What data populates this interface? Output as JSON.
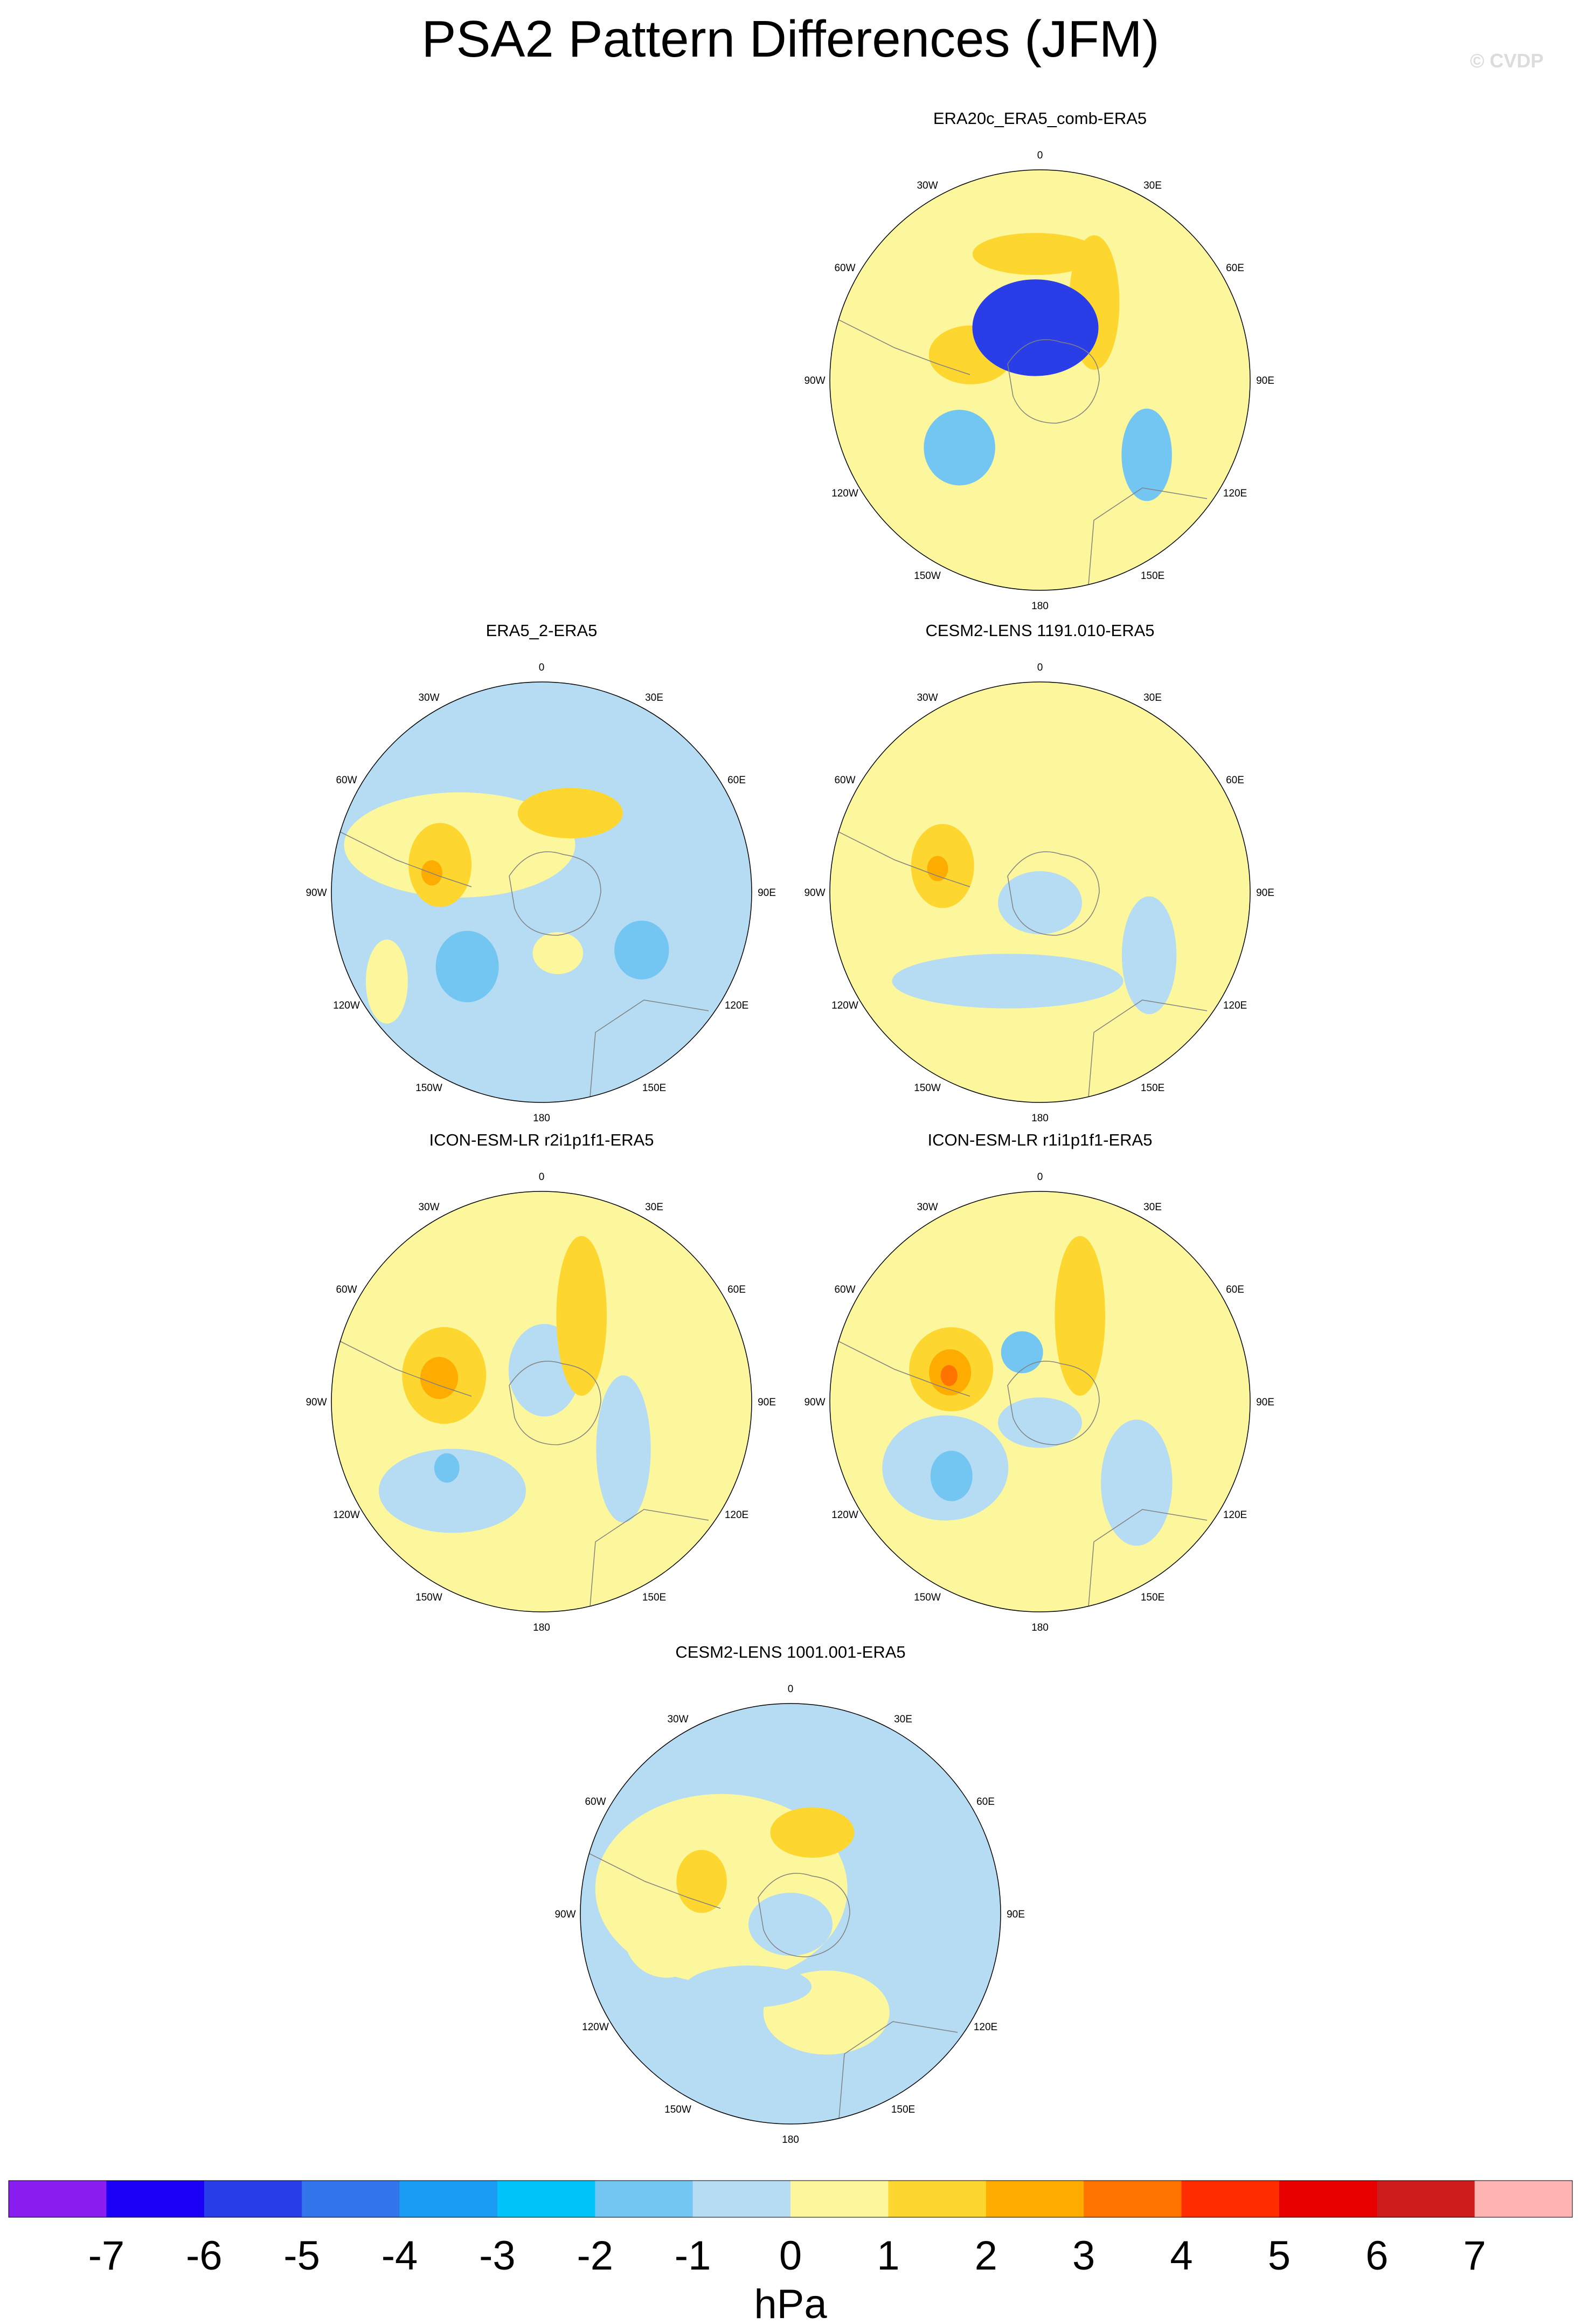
{
  "title": "PSA2 Pattern Differences (JFM)",
  "copyright": "© CVDP",
  "chart_data": {
    "type": "heatmap",
    "projection": "south-polar-stereographic",
    "levels": [
      -7,
      -6,
      -5,
      -4,
      -3,
      -2,
      -1,
      0,
      1,
      2,
      3,
      4,
      5,
      6,
      7
    ],
    "colors": [
      "#8a1ef0",
      "#1c00f5",
      "#2a3ee8",
      "#3274ea",
      "#1a9cf5",
      "#00c3fa",
      "#74c6f2",
      "#b5dcf2",
      "#fcf79c",
      "#fdd72f",
      "#ffac00",
      "#ff7300",
      "#ff2d00",
      "#e80000",
      "#cc1c1c",
      "#ffb4b4"
    ],
    "colorbar_tick_labels": [
      "-7",
      "-6",
      "-5",
      "-4",
      "-3",
      "-2",
      "-1",
      "0",
      "1",
      "2",
      "3",
      "4",
      "5",
      "6",
      "7"
    ],
    "colorbar_unit": "hPa",
    "longitude_labels": [
      "0",
      "30E",
      "60E",
      "90E",
      "120E",
      "150E",
      "180",
      "150W",
      "120W",
      "90W",
      "60W",
      "30W"
    ],
    "panels": [
      {
        "name": "ERA20c_ERA5_comb-ERA5",
        "background": 0.5,
        "features": [
          {
            "lon": 0,
            "dist": 0.15,
            "rx": 0.36,
            "ry": 0.26,
            "value": 0.5
          },
          {
            "lon": -140,
            "dist": 0.5,
            "rx": 0.48,
            "ry": 0.2,
            "value": 0.5
          },
          {
            "lon": -50,
            "dist": 0.5,
            "rx": 0.17,
            "ry": 0.18,
            "value": -1.5
          },
          {
            "lon": 55,
            "dist": 0.62,
            "rx": 0.12,
            "ry": 0.22,
            "value": -1.5
          },
          {
            "lon": -110,
            "dist": 0.35,
            "rx": 0.2,
            "ry": 0.14,
            "value": 1.5
          },
          {
            "lon": 145,
            "dist": 0.45,
            "rx": 0.12,
            "ry": 0.32,
            "value": 1.5
          },
          {
            "lon": -178,
            "dist": 0.6,
            "rx": 0.3,
            "ry": 0.1,
            "value": 1.5
          },
          {
            "lon": -175,
            "dist": 0.25,
            "rx": 0.3,
            "ry": 0.23,
            "value": -5.5
          }
        ]
      },
      {
        "name": "ERA5_2-ERA5",
        "background": -0.5,
        "features": [
          {
            "lon": -120,
            "dist": 0.45,
            "rx": 0.55,
            "ry": 0.25,
            "value": 0.5
          },
          {
            "lon": -60,
            "dist": 0.85,
            "rx": 0.1,
            "ry": 0.2,
            "value": 0.5
          },
          {
            "lon": 15,
            "dist": 0.3,
            "rx": 0.12,
            "ry": 0.1,
            "value": 0.5
          },
          {
            "lon": -45,
            "dist": 0.5,
            "rx": 0.15,
            "ry": 0.17,
            "value": -1.5
          },
          {
            "lon": 60,
            "dist": 0.55,
            "rx": 0.13,
            "ry": 0.14,
            "value": -1.5
          },
          {
            "lon": -105,
            "dist": 0.5,
            "rx": 0.15,
            "ry": 0.2,
            "value": 1.5
          },
          {
            "lon": 160,
            "dist": 0.4,
            "rx": 0.25,
            "ry": 0.12,
            "value": 1.5
          },
          {
            "lon": -100,
            "dist": 0.53,
            "rx": 0.05,
            "ry": 0.06,
            "value": 2.5
          }
        ]
      },
      {
        "name": "CESM2-LENS 1191.010-ERA5",
        "background": 0.5,
        "features": [
          {
            "lon": -20,
            "dist": 0.45,
            "rx": 0.55,
            "ry": 0.13,
            "value": -0.5
          },
          {
            "lon": 0,
            "dist": 0.05,
            "rx": 0.2,
            "ry": 0.15,
            "value": -0.5
          },
          {
            "lon": 60,
            "dist": 0.6,
            "rx": 0.13,
            "ry": 0.28,
            "value": -0.5
          },
          {
            "lon": -105,
            "dist": 0.48,
            "rx": 0.15,
            "ry": 0.2,
            "value": 1.5
          },
          {
            "lon": -103,
            "dist": 0.5,
            "rx": 0.05,
            "ry": 0.06,
            "value": 2.5
          }
        ]
      },
      {
        "name": "ICON-ESM-LR r2i1p1f1-ERA5",
        "background": 0.5,
        "features": [
          {
            "lon": -45,
            "dist": 0.6,
            "rx": 0.35,
            "ry": 0.2,
            "value": -0.5
          },
          {
            "lon": 60,
            "dist": 0.45,
            "rx": 0.13,
            "ry": 0.35,
            "value": -0.5
          },
          {
            "lon": 175,
            "dist": 0.15,
            "rx": 0.17,
            "ry": 0.22,
            "value": -0.5
          },
          {
            "lon": -55,
            "dist": 0.55,
            "rx": 0.06,
            "ry": 0.07,
            "value": -1.5
          },
          {
            "lon": -105,
            "dist": 0.48,
            "rx": 0.2,
            "ry": 0.23,
            "value": 1.5
          },
          {
            "lon": 155,
            "dist": 0.45,
            "rx": 0.12,
            "ry": 0.38,
            "value": 1.5
          },
          {
            "lon": -103,
            "dist": 0.5,
            "rx": 0.09,
            "ry": 0.1,
            "value": 2.5
          }
        ]
      },
      {
        "name": "ICON-ESM-LR r1i1p1f1-ERA5",
        "background": 0.5,
        "features": [
          {
            "lon": -55,
            "dist": 0.55,
            "rx": 0.3,
            "ry": 0.25,
            "value": -0.5
          },
          {
            "lon": 50,
            "dist": 0.6,
            "rx": 0.17,
            "ry": 0.3,
            "value": -0.5
          },
          {
            "lon": 0,
            "dist": 0.1,
            "rx": 0.2,
            "ry": 0.12,
            "value": -0.5
          },
          {
            "lon": -50,
            "dist": 0.55,
            "rx": 0.1,
            "ry": 0.12,
            "value": -1.5
          },
          {
            "lon": -160,
            "dist": 0.25,
            "rx": 0.1,
            "ry": 0.1,
            "value": -1.5
          },
          {
            "lon": -110,
            "dist": 0.45,
            "rx": 0.2,
            "ry": 0.2,
            "value": 1.5
          },
          {
            "lon": 155,
            "dist": 0.45,
            "rx": 0.12,
            "ry": 0.38,
            "value": 1.5
          },
          {
            "lon": -108,
            "dist": 0.45,
            "rx": 0.1,
            "ry": 0.11,
            "value": 2.5
          },
          {
            "lon": -106,
            "dist": 0.45,
            "rx": 0.04,
            "ry": 0.05,
            "value": 3.5
          }
        ]
      },
      {
        "name": "CESM2-LENS 1001.001-ERA5",
        "background": -0.5,
        "features": [
          {
            "lon": -110,
            "dist": 0.35,
            "rx": 0.6,
            "ry": 0.45,
            "value": 0.5
          },
          {
            "lon": 20,
            "dist": 0.5,
            "rx": 0.3,
            "ry": 0.2,
            "value": 0.5
          },
          {
            "lon": -80,
            "dist": 0.6,
            "rx": 0.2,
            "ry": 0.2,
            "value": 0.5
          },
          {
            "lon": -30,
            "dist": 0.4,
            "rx": 0.3,
            "ry": 0.1,
            "value": -0.5
          },
          {
            "lon": 0,
            "dist": 0.05,
            "rx": 0.2,
            "ry": 0.15,
            "value": -0.5
          },
          {
            "lon": -110,
            "dist": 0.45,
            "rx": 0.12,
            "ry": 0.15,
            "value": 1.5
          },
          {
            "lon": 165,
            "dist": 0.4,
            "rx": 0.2,
            "ry": 0.12,
            "value": 1.5
          }
        ]
      }
    ]
  }
}
